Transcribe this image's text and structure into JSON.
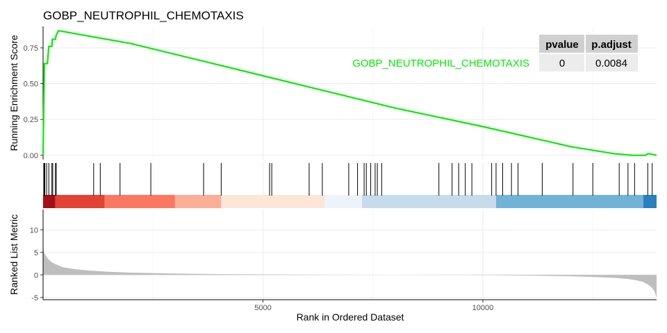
{
  "chart_data": {
    "type": "line",
    "title": "GOBP_NEUTROPHIL_CHEMOTAXIS",
    "xlabel": "Rank in Ordered Dataset",
    "xlim": [
      0,
      13950
    ],
    "x_ticks": [
      5000,
      10000
    ],
    "grid": true,
    "running_score": {
      "ylabel": "Running Enrichment Score",
      "series_label": "GOBP_NEUTROPHIL_CHEMOTAXIS",
      "color": "#00ee00",
      "ylim": [
        -0.03,
        0.9
      ],
      "y_ticks": [
        0.0,
        0.25,
        0.5,
        0.75
      ],
      "x": [
        0,
        30,
        40,
        100,
        130,
        200,
        210,
        280,
        300,
        350,
        2000,
        4000,
        6000,
        8000,
        10000,
        12000,
        13000,
        13400,
        13600,
        13700,
        13750,
        13800,
        13950
      ],
      "y": [
        0.0,
        0.64,
        0.64,
        0.64,
        0.76,
        0.76,
        0.81,
        0.81,
        0.84,
        0.87,
        0.78,
        0.63,
        0.48,
        0.33,
        0.2,
        0.06,
        0.01,
        0.0,
        0.0,
        0.0,
        0.01,
        0.01,
        0.0
      ]
    },
    "gene_hits": [
      15,
      30,
      40,
      80,
      130,
      200,
      220,
      280,
      300,
      1150,
      1300,
      1750,
      2450,
      3650,
      4050,
      5150,
      5200,
      6050,
      6350,
      6950,
      7150,
      7300,
      7350,
      7450,
      7550,
      7600,
      7700,
      9000,
      9300,
      9450,
      9600,
      9750,
      10200,
      10300,
      10450,
      10650,
      10800,
      11350,
      12050,
      12500,
      13100,
      13300,
      13450,
      13750,
      13850
    ],
    "rank_bands": [
      {
        "x0": 0,
        "x1": 280,
        "color": "#a50f15"
      },
      {
        "x0": 280,
        "x1": 1400,
        "color": "#e34234"
      },
      {
        "x0": 1400,
        "x1": 3000,
        "color": "#fb7761"
      },
      {
        "x0": 3000,
        "x1": 4050,
        "color": "#fcae96"
      },
      {
        "x0": 4050,
        "x1": 6400,
        "color": "#fde5d8"
      },
      {
        "x0": 6400,
        "x1": 7250,
        "color": "#eef3fb"
      },
      {
        "x0": 7250,
        "x1": 10300,
        "color": "#c6dcea"
      },
      {
        "x0": 10300,
        "x1": 13650,
        "color": "#72b2d8"
      },
      {
        "x0": 13650,
        "x1": 13950,
        "color": "#2a7fc1"
      }
    ],
    "ranked_metric": {
      "ylabel": "Ranked List Metric",
      "ylim": [
        -5.5,
        14.5
      ],
      "y_ticks": [
        -5,
        0,
        5,
        10
      ],
      "color": "#bebebe",
      "x": [
        0,
        20,
        60,
        120,
        200,
        300,
        450,
        700,
        1000,
        1500,
        2000,
        3000,
        4000,
        6000,
        8000,
        10000,
        11000,
        12000,
        12500,
        13000,
        13300,
        13500,
        13650,
        13750,
        13850,
        13900,
        13950
      ],
      "y": [
        6.5,
        5.0,
        4.3,
        3.5,
        2.8,
        2.3,
        1.7,
        1.3,
        1.0,
        0.7,
        0.5,
        0.3,
        0.18,
        0.05,
        0.0,
        -0.05,
        -0.15,
        -0.3,
        -0.45,
        -0.65,
        -0.9,
        -1.2,
        -1.6,
        -2.1,
        -2.9,
        -3.6,
        -5.0
      ]
    },
    "stats_table": {
      "headers": [
        "pvalue",
        "p.adjust"
      ],
      "row": [
        "0",
        "0.0084"
      ],
      "legend_placement": "top-right"
    }
  }
}
